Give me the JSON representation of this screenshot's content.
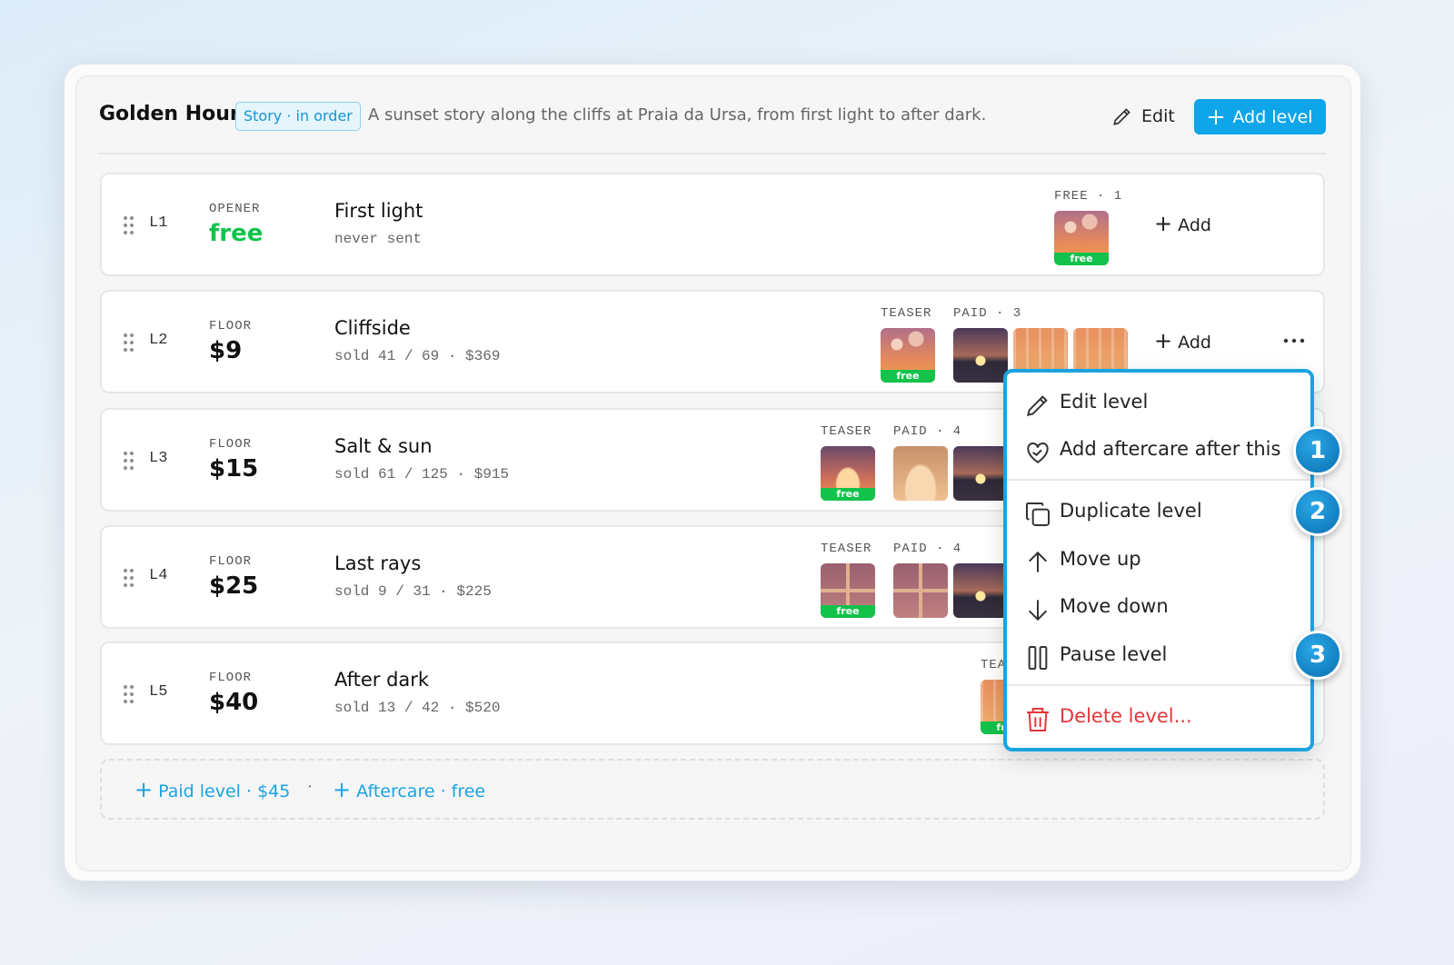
{
  "header": {
    "title": "Golden Hour",
    "badge": "Story · in order",
    "description": "A sunset story along the cliffs at Praia da Ursa, from first light to after dark.",
    "edit": "Edit",
    "add_level": "Add level"
  },
  "levels": [
    {
      "id": "L1",
      "kind": "OPENER",
      "price": "free",
      "name": "First light",
      "stats": "never sent",
      "free_label": "FREE · 1",
      "badge": "free",
      "add": "Add"
    },
    {
      "id": "L2",
      "kind": "FLOOR",
      "price": "$9",
      "name": "Cliffside",
      "stats": "sold 41 / 69 · $369",
      "teaser_label": "TEASER",
      "paid_label": "PAID · 3",
      "badge": "free",
      "add": "Add"
    },
    {
      "id": "L3",
      "kind": "FLOOR",
      "price": "$15",
      "name": "Salt & sun",
      "stats": "sold 61 / 125 · $915",
      "teaser_label": "TEASER",
      "paid_label": "PAID · 4",
      "badge": "free"
    },
    {
      "id": "L4",
      "kind": "FLOOR",
      "price": "$25",
      "name": "Last rays",
      "stats": "sold 9 / 31 · $225",
      "teaser_label": "TEASER",
      "paid_label": "PAID · 4",
      "badge": "free"
    },
    {
      "id": "L5",
      "kind": "FLOOR",
      "price": "$40",
      "name": "After dark",
      "stats": "sold 13 / 42 · $520",
      "teaser_label": "TEASER",
      "badge": "free"
    }
  ],
  "menu": {
    "items": [
      "Edit level",
      "Add aftercare after this",
      "Duplicate level",
      "Move up",
      "Move down",
      "Pause level",
      "Delete level..."
    ],
    "callouts": [
      "1",
      "2",
      "3"
    ]
  },
  "footer": {
    "paid": "Paid level · $45",
    "aftercare": "Aftercare · free"
  }
}
